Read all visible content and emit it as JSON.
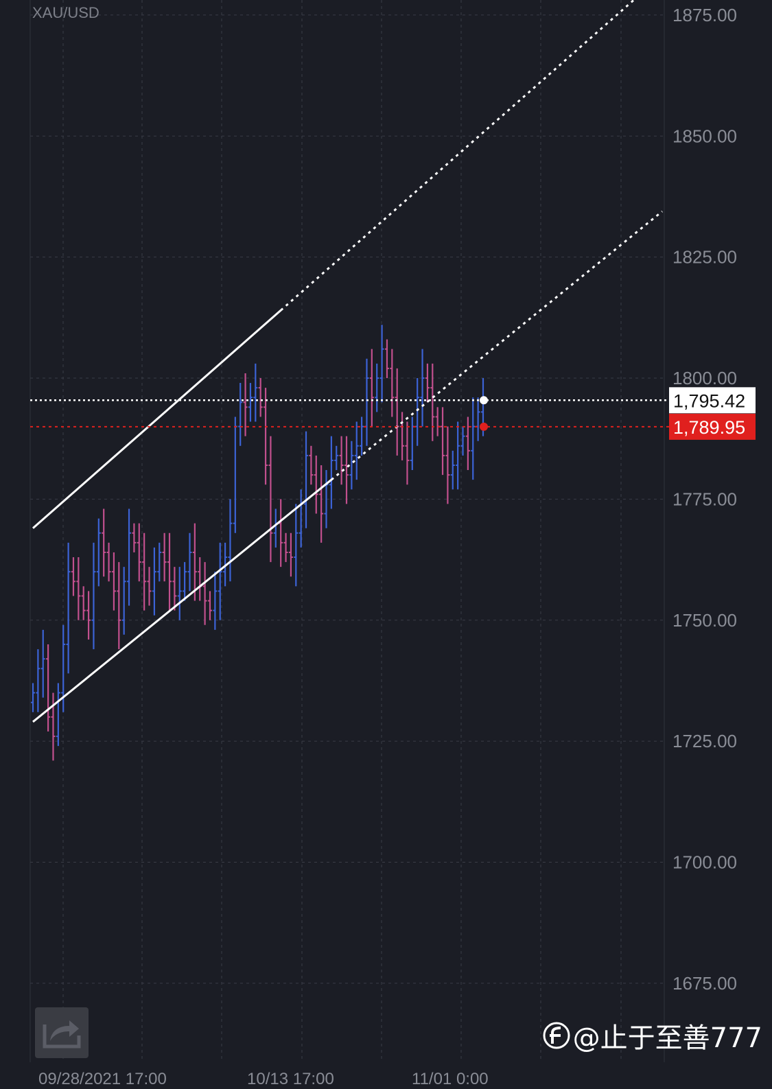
{
  "symbol": "XAU/USD",
  "watermark": "@止于至善777",
  "icons": {
    "share": "share-export-icon",
    "watermark_logo": "toutiao-logo"
  },
  "colors": {
    "background": "#1b1d25",
    "up_bar": "#3c63d6",
    "down_bar": "#c2508e",
    "grid": "#3a3d47",
    "axis_text": "#8a8d96",
    "channel": "#ffffff",
    "current_price_label_bg": "#ffffff",
    "alert_line": "#e0201e"
  },
  "chart_data": {
    "type": "ohlc",
    "title": "XAU/USD",
    "ylim": [
      1670,
      1876
    ],
    "yticks": [
      "1875.00",
      "1850.00",
      "1825.00",
      "1800.00",
      "1775.00",
      "1750.00",
      "1725.00",
      "1700.00",
      "1675.00"
    ],
    "ytick_values": [
      1875,
      1850,
      1825,
      1800,
      1775,
      1750,
      1725,
      1700,
      1675
    ],
    "xtick_labels": [
      "09/28/2021 17:00",
      "10/13 17:00",
      "11/01 0:00"
    ],
    "grid": true,
    "price_lines": [
      {
        "name": "current",
        "value": 1795.42,
        "label": "1,795.42",
        "style": "white-dotted"
      },
      {
        "name": "alert",
        "value": 1789.95,
        "label": "1,789.95",
        "style": "red-dotted"
      }
    ],
    "channel": {
      "upper": {
        "start": [
          0,
          1769
        ],
        "end": [
          49,
          1814
        ]
      },
      "lower": {
        "start": [
          0,
          1729
        ],
        "end": [
          59,
          1779
        ]
      },
      "extends_beyond": true
    },
    "close_series": [
      1735,
      1740,
      1742,
      1730,
      1726,
      1735,
      1745,
      1760,
      1758,
      1755,
      1752,
      1750,
      1760,
      1768,
      1764,
      1760,
      1756,
      1750,
      1758,
      1768,
      1766,
      1762,
      1758,
      1756,
      1760,
      1764,
      1762,
      1758,
      1755,
      1756,
      1760,
      1764,
      1760,
      1757,
      1754,
      1752,
      1756,
      1760,
      1763,
      1770,
      1790,
      1795,
      1794,
      1796,
      1798,
      1794,
      1782,
      1768,
      1770,
      1766,
      1764,
      1763,
      1768,
      1774,
      1784,
      1780,
      1776,
      1772,
      1778,
      1783,
      1784,
      1782,
      1780,
      1784,
      1786,
      1790,
      1800,
      1796,
      1800,
      1806,
      1802,
      1796,
      1790,
      1786,
      1783,
      1790,
      1796,
      1800,
      1798,
      1792,
      1790,
      1784,
      1780,
      1782,
      1786,
      1788,
      1785,
      1790,
      1793,
      1795
    ]
  }
}
